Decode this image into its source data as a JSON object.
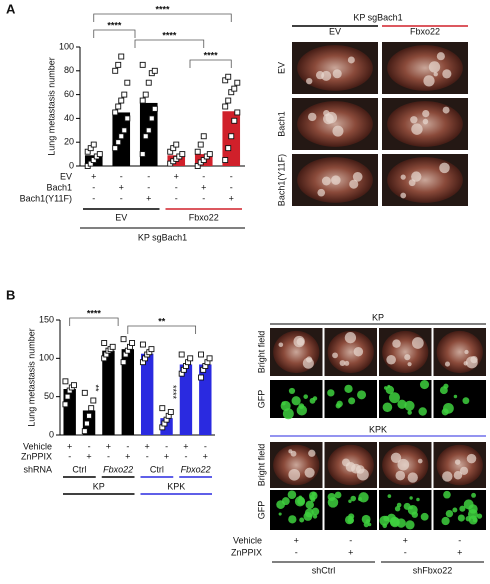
{
  "panels": [
    "A",
    "B"
  ],
  "chart_data": [
    {
      "type": "bar",
      "ylabel": "Lung metastasis number",
      "ylim": [
        0,
        100
      ],
      "yticks": [
        0,
        20,
        40,
        60,
        80,
        100
      ],
      "values": [
        9,
        45,
        53,
        9,
        10,
        46
      ],
      "colors": [
        "#000000",
        "#000000",
        "#000000",
        "#d0202a",
        "#d0202a",
        "#d0202a"
      ],
      "points": [
        [
          0,
          2,
          5,
          8,
          10,
          12,
          15,
          18
        ],
        [
          15,
          20,
          25,
          30,
          40,
          45,
          50,
          55,
          60,
          70,
          80,
          85,
          92
        ],
        [
          10,
          25,
          30,
          40,
          48,
          55,
          60,
          70,
          78,
          80,
          85
        ],
        [
          2,
          4,
          6,
          8,
          10,
          12,
          15,
          18
        ],
        [
          0,
          3,
          5,
          8,
          10,
          12,
          18,
          25
        ],
        [
          5,
          15,
          25,
          38,
          45,
          50,
          55,
          62,
          65,
          70,
          72,
          75
        ]
      ],
      "rows": [
        {
          "label": "EV",
          "marks": [
            "+",
            "-",
            "-",
            "+",
            "-",
            "-"
          ]
        },
        {
          "label": "Bach1",
          "marks": [
            "-",
            "+",
            "-",
            "-",
            "+",
            "-"
          ]
        },
        {
          "label": "Bach1(Y11F)",
          "marks": [
            "-",
            "-",
            "+",
            "-",
            "-",
            "+"
          ]
        }
      ],
      "group_rows": [
        {
          "groups": [
            "EV",
            "Fbxo22"
          ],
          "colors": [
            "#000000",
            "#d0202a"
          ]
        }
      ],
      "xlabel": "KP sgBach1",
      "significance": [
        "****",
        "****",
        "****",
        "****"
      ]
    },
    {
      "type": "bar",
      "ylabel": "Lung metastasis number",
      "ylim": [
        0,
        150
      ],
      "yticks": [
        0,
        50,
        100,
        150
      ],
      "values": [
        60,
        32,
        110,
        112,
        106,
        22,
        92,
        92
      ],
      "colors": [
        "#000000",
        "#000000",
        "#000000",
        "#000000",
        "#2a2ae0",
        "#2a2ae0",
        "#2a2ae0",
        "#2a2ae0"
      ],
      "points": [
        [
          40,
          50,
          58,
          62,
          65,
          70
        ],
        [
          5,
          15,
          25,
          35,
          45,
          55
        ],
        [
          100,
          105,
          110,
          112,
          115,
          120
        ],
        [
          95,
          105,
          110,
          115,
          120,
          125
        ],
        [
          95,
          100,
          105,
          108,
          112,
          118
        ],
        [
          10,
          15,
          20,
          25,
          30,
          35
        ],
        [
          80,
          85,
          90,
          95,
          100,
          105
        ],
        [
          75,
          85,
          90,
          95,
          100,
          105
        ]
      ],
      "rows": [
        {
          "label": "Vehicle",
          "marks": [
            "+",
            "-",
            "+",
            "-",
            "+",
            "-",
            "+",
            "-"
          ]
        },
        {
          "label": "ZnPPIX",
          "marks": [
            "-",
            "+",
            "-",
            "+",
            "-",
            "+",
            "-",
            "+"
          ]
        }
      ],
      "group_rows": [
        {
          "label": "shRNA",
          "groups": [
            "Ctrl",
            "Fbxo22",
            "Ctrl",
            "Fbxo22"
          ],
          "colors": [
            "#000000",
            "#000000",
            "#2a2ae0",
            "#2a2ae0"
          ]
        },
        {
          "groups": [
            "KP",
            "KPK"
          ],
          "colors": [
            "#000000",
            "#2a2ae0"
          ]
        }
      ],
      "significance": [
        "****",
        "**",
        "**",
        "****"
      ]
    }
  ],
  "images_a": {
    "title": "KP sgBach1",
    "columns": [
      "EV",
      "Fbxo22"
    ],
    "rows": [
      "EV",
      "Bach1",
      "Bach1(Y11F)"
    ]
  },
  "images_b": {
    "blocks": [
      {
        "title": "KP",
        "rows": [
          "Bright field",
          "GFP"
        ]
      },
      {
        "title": "KPK",
        "rows": [
          "Bright field",
          "GFP"
        ]
      }
    ],
    "conditions": [
      {
        "label": "Vehicle",
        "marks": [
          "+",
          "-",
          "+",
          "-"
        ]
      },
      {
        "label": "ZnPPIX",
        "marks": [
          "-",
          "+",
          "-",
          "+"
        ]
      }
    ],
    "groups": [
      "shCtrl",
      "shFbxo22"
    ]
  }
}
